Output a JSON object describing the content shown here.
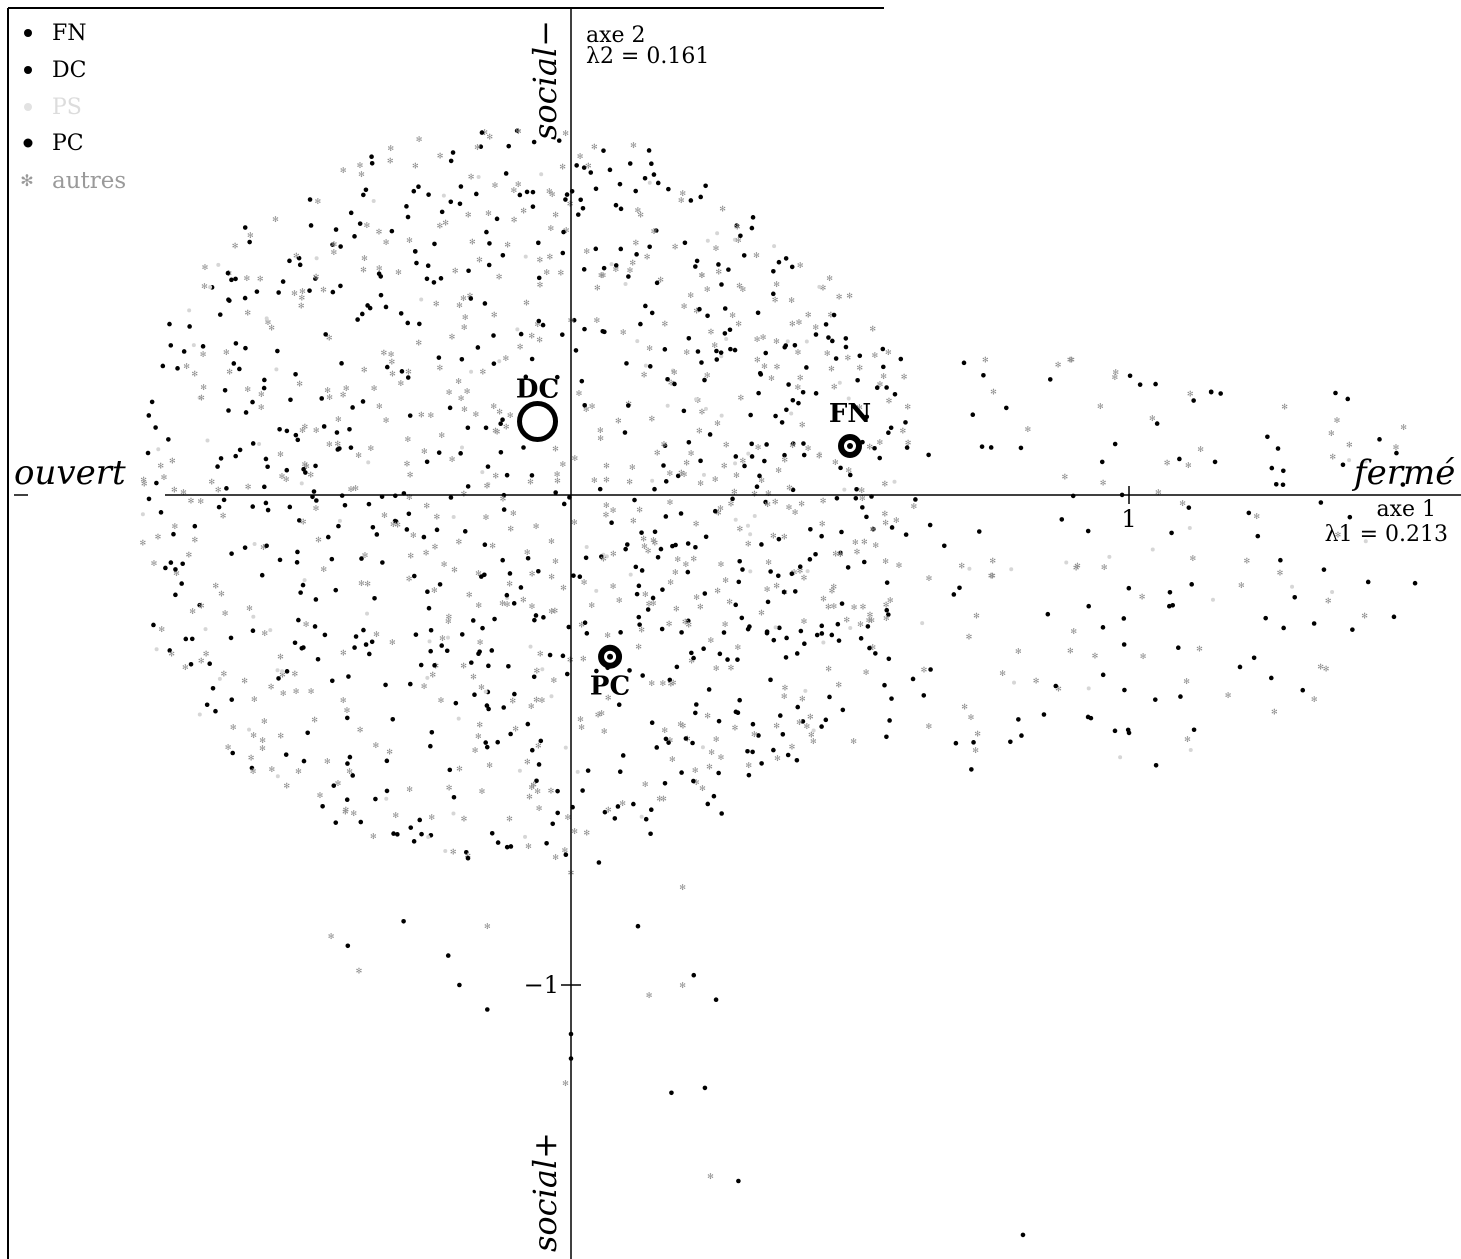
{
  "chart_data": {
    "type": "scatter",
    "xlim": [
      -1.01,
      1.6
    ],
    "ylim": [
      -1.54,
      0.8
    ],
    "grid": false,
    "legend_placement": "top-left",
    "legend": [
      {
        "name": "FN",
        "color": "#000000",
        "marker": "dot"
      },
      {
        "name": "DC",
        "color": "#000000",
        "marker": "dot"
      },
      {
        "name": "PS",
        "color": "#cfcfcf",
        "marker": "dot"
      },
      {
        "name": "PC",
        "color": "#000000",
        "marker": "dot"
      },
      {
        "name": "autres",
        "color": "#9a9a9a",
        "marker": "star"
      }
    ],
    "axes": {
      "x": {
        "name": "axe 1",
        "eigen": "λ1 = 0.213",
        "left_label": "ouvert",
        "right_label": "fermé",
        "ticks": [
          {
            "value": 1,
            "label": "1"
          }
        ]
      },
      "y": {
        "name": "axe 2",
        "eigen": "λ2 = 0.161",
        "top_label": "social−",
        "bottom_label": "social+",
        "ticks": [
          {
            "value": -1,
            "label": "−1"
          }
        ]
      }
    },
    "centroids": [
      {
        "name": "DC",
        "x": -0.06,
        "y": 0.15,
        "marker": "open-circle"
      },
      {
        "name": "FN",
        "x": 0.5,
        "y": 0.1,
        "marker": "ringed-dot"
      },
      {
        "name": "PC",
        "x": 0.07,
        "y": -0.33,
        "marker": "ringed-dot"
      }
    ],
    "points_note": "cloud of approximately 1500 individual respondent points concentrated between x -0.76 and 0.6, y -0.75 and 0.76; sparse tail toward x 1.5 and y -1.5"
  },
  "colors": {
    "black": "#000000",
    "light": "#cfcfcf",
    "others": "#9a9a9a"
  }
}
